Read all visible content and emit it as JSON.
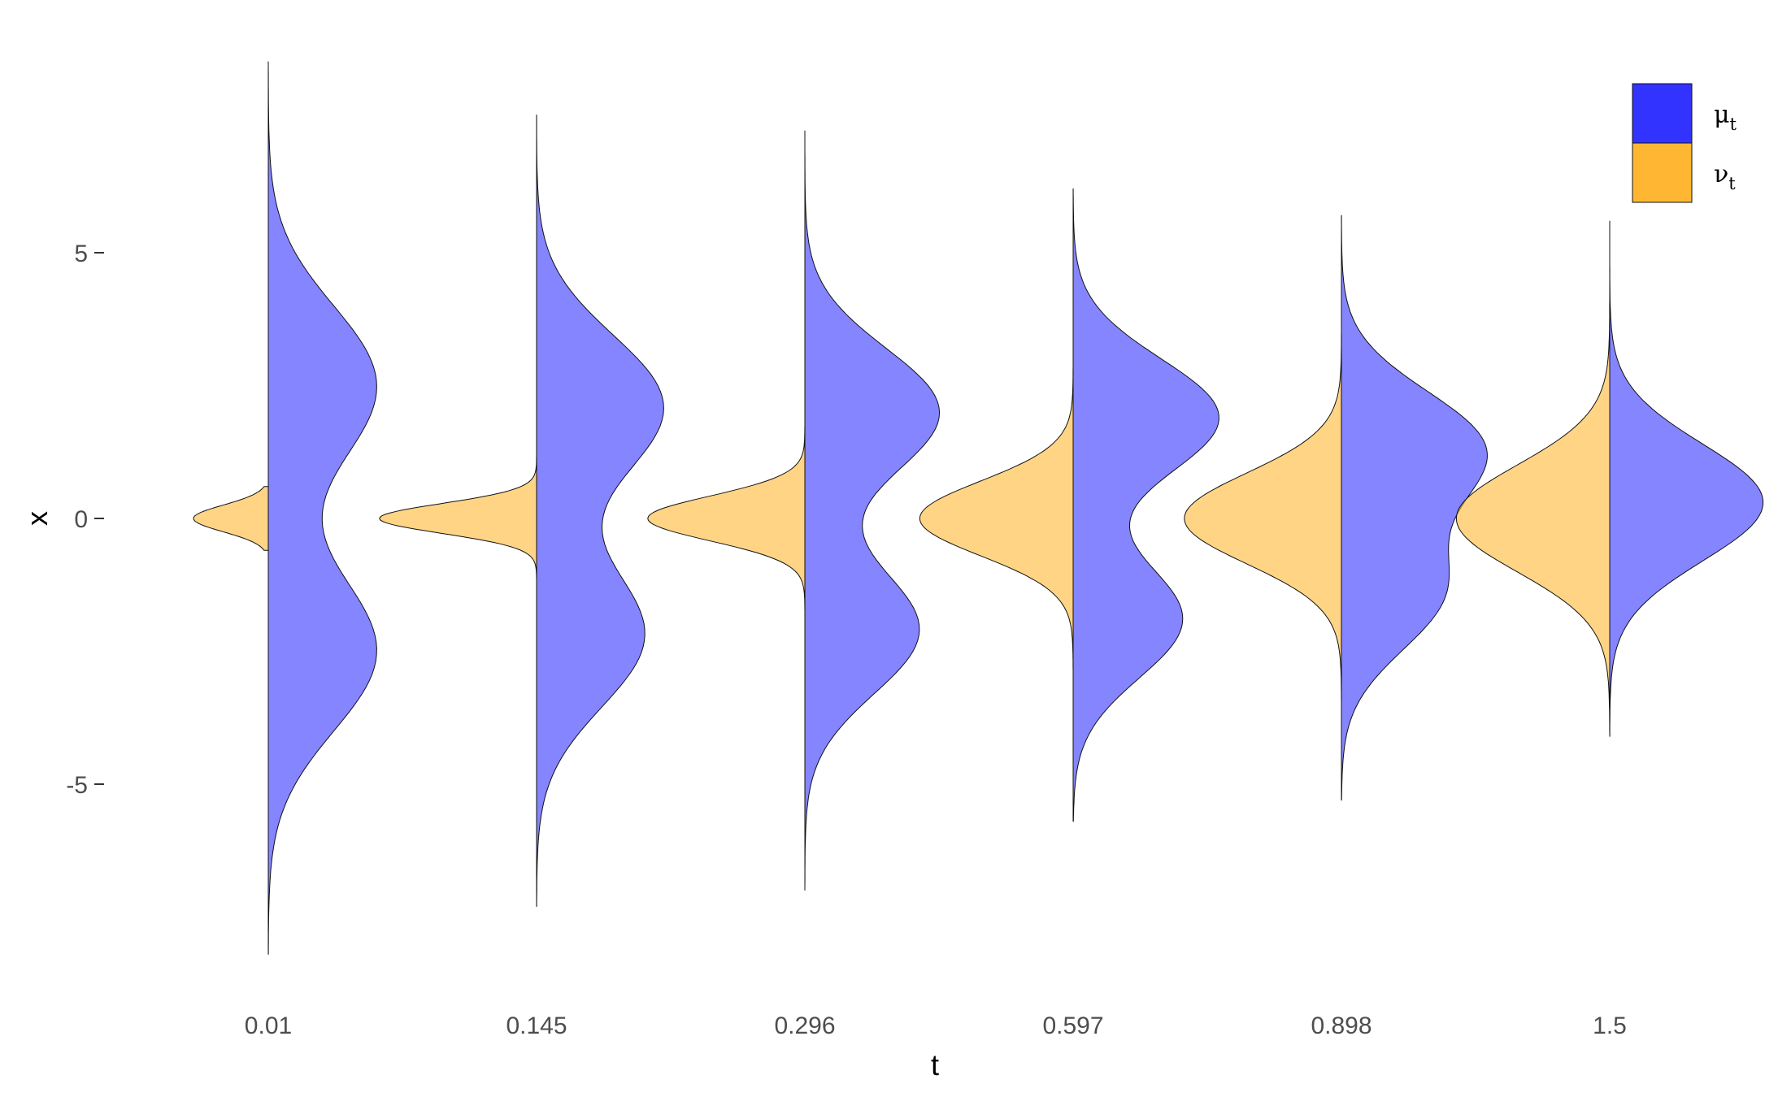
{
  "chart_data": {
    "type": "violin",
    "xlabel": "t",
    "ylabel": "x",
    "ylim": [
      -8.5,
      9.2
    ],
    "y_ticks": [
      {
        "value": 5,
        "label": "5"
      },
      {
        "value": 0,
        "label": "0"
      },
      {
        "value": -5,
        "label": "-5"
      }
    ],
    "grid": false,
    "legend": {
      "placement": "top-right",
      "entries": [
        {
          "key": "mu",
          "symbol": "μ",
          "sub": "t",
          "color": "#3333ff"
        },
        {
          "key": "nu",
          "symbol": "ν",
          "sub": "t",
          "color": "#ffb733"
        }
      ]
    },
    "series_colors": {
      "mu": "#3333ff",
      "nu": "#ffb733"
    },
    "fill_opacity": 0.6,
    "categories": [
      "0.01",
      "0.145",
      "0.296",
      "0.597",
      "0.898",
      "1.5"
    ],
    "groups": [
      {
        "t": "0.01",
        "mu": {
          "side": "right",
          "min": -8.2,
          "max": 8.6,
          "peaks": [
            [
              2.5,
              1.5,
              1.0
            ],
            [
              -2.5,
              1.5,
              1.0
            ]
          ],
          "scale": 1.45
        },
        "nu": {
          "side": "left",
          "min": -0.6,
          "max": 0.6,
          "peaks": [
            [
              0.0,
              0.25,
              1.0
            ]
          ],
          "scale": 1.0
        }
      },
      {
        "t": "0.145",
        "mu": {
          "side": "right",
          "min": -7.3,
          "max": 7.6,
          "peaks": [
            [
              2.1,
              1.35,
              1.0
            ],
            [
              -2.2,
              1.35,
              0.85
            ]
          ],
          "scale": 1.7
        },
        "nu": {
          "side": "left",
          "min": -1.9,
          "max": 2.0,
          "peaks": [
            [
              0.0,
              0.28,
              1.0
            ]
          ],
          "scale": 2.1
        }
      },
      {
        "t": "0.296",
        "mu": {
          "side": "right",
          "min": -7.0,
          "max": 7.3,
          "peaks": [
            [
              2.0,
              1.2,
              1.0
            ],
            [
              -2.1,
              1.2,
              0.85
            ]
          ],
          "scale": 1.8
        },
        "nu": {
          "side": "left",
          "min": -2.5,
          "max": 2.9,
          "peaks": [
            [
              0.0,
              0.42,
              1.0
            ]
          ],
          "scale": 2.1
        }
      },
      {
        "t": "0.597",
        "mu": {
          "side": "right",
          "min": -5.7,
          "max": 6.2,
          "peaks": [
            [
              1.9,
              1.1,
              1.0
            ],
            [
              -1.9,
              1.1,
              0.75
            ]
          ],
          "scale": 1.95
        },
        "nu": {
          "side": "left",
          "min": -2.9,
          "max": 3.8,
          "peaks": [
            [
              0.0,
              0.7,
              1.0
            ]
          ],
          "scale": 2.05
        }
      },
      {
        "t": "0.898",
        "mu": {
          "side": "right",
          "min": -5.3,
          "max": 5.7,
          "peaks": [
            [
              1.3,
              1.1,
              1.0
            ],
            [
              -1.4,
              1.1,
              0.7
            ]
          ],
          "scale": 1.95
        },
        "nu": {
          "side": "left",
          "min": -3.4,
          "max": 3.8,
          "peaks": [
            [
              0.0,
              0.85,
              1.0
            ]
          ],
          "scale": 2.1
        }
      },
      {
        "t": "1.5",
        "mu": {
          "side": "right",
          "min": -4.1,
          "max": 5.6,
          "peaks": [
            [
              0.3,
              1.1,
              1.0
            ]
          ],
          "scale": 2.05
        },
        "nu": {
          "side": "left",
          "min": -4.0,
          "max": 4.2,
          "peaks": [
            [
              0.0,
              1.0,
              1.0
            ]
          ],
          "scale": 2.05
        }
      }
    ]
  }
}
